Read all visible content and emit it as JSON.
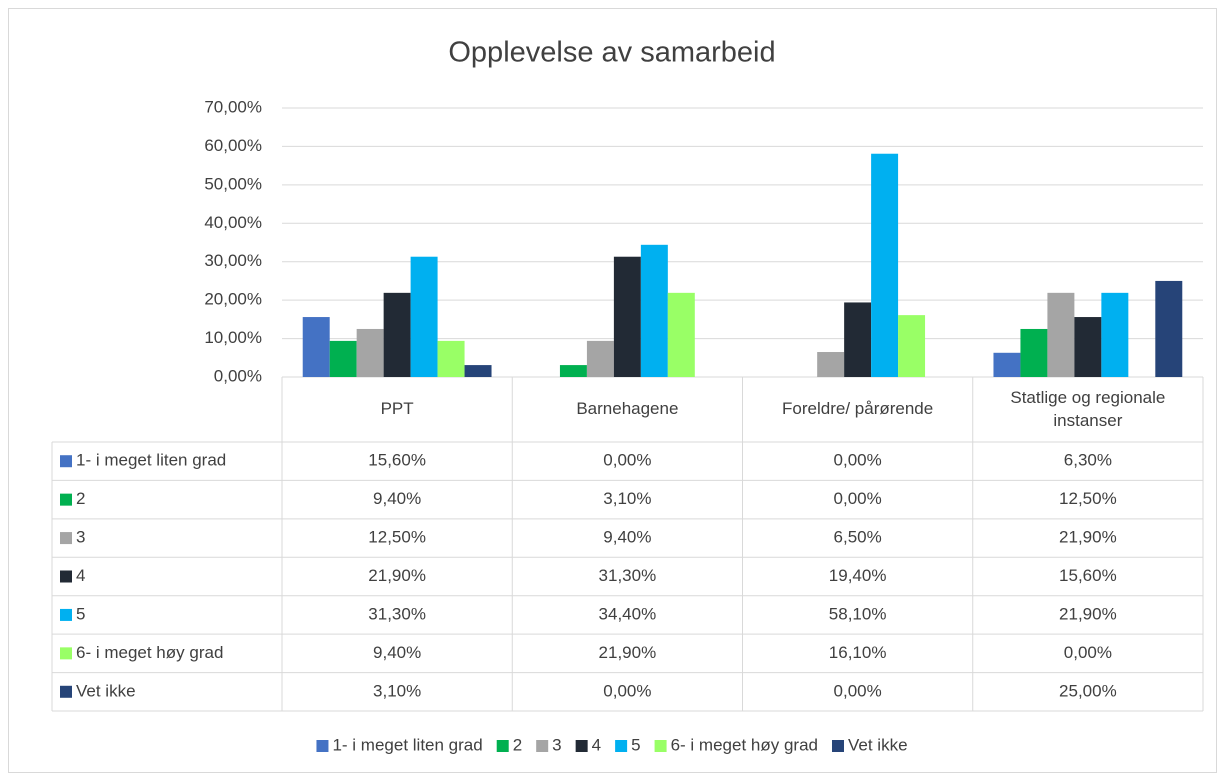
{
  "chart_data": {
    "type": "bar",
    "title": "Opplevelse av samarbeid",
    "categories": [
      "PPT",
      "Barnehagene",
      "Foreldre/ pårørende",
      "Statlige og regionale instanser"
    ],
    "series": [
      {
        "name": "1- i meget liten grad",
        "color": "#4472c4",
        "values": [
          15.6,
          0,
          0,
          6.3
        ],
        "value_labels": [
          "15,60%",
          "0,00%",
          "0,00%",
          "6,30%"
        ]
      },
      {
        "name": "2",
        "color": "#00b050",
        "values": [
          9.4,
          3.1,
          0,
          12.5
        ],
        "value_labels": [
          "9,40%",
          "3,10%",
          "0,00%",
          "12,50%"
        ]
      },
      {
        "name": "3",
        "color": "#a5a5a5",
        "values": [
          12.5,
          9.4,
          6.5,
          21.9
        ],
        "value_labels": [
          "12,50%",
          "9,40%",
          "6,50%",
          "21,90%"
        ]
      },
      {
        "name": "4",
        "color": "#222a35",
        "values": [
          21.9,
          31.3,
          19.4,
          15.6
        ],
        "value_labels": [
          "21,90%",
          "31,30%",
          "19,40%",
          "15,60%"
        ]
      },
      {
        "name": "5",
        "color": "#00b0f0",
        "values": [
          31.3,
          34.4,
          58.1,
          21.9
        ],
        "value_labels": [
          "31,30%",
          "34,40%",
          "58,10%",
          "21,90%"
        ]
      },
      {
        "name": "6- i meget høy grad",
        "color": "#99ff66",
        "values": [
          9.4,
          21.9,
          16.1,
          0
        ],
        "value_labels": [
          "9,40%",
          "21,90%",
          "16,10%",
          "0,00%"
        ]
      },
      {
        "name": "Vet ikke",
        "color": "#264478",
        "values": [
          3.1,
          0,
          0,
          25
        ],
        "value_labels": [
          "3,10%",
          "0,00%",
          "0,00%",
          "25,00%"
        ]
      }
    ],
    "ylim": [
      0,
      70
    ],
    "yticks": [
      {
        "value": 0,
        "label": "0,00%"
      },
      {
        "value": 10,
        "label": "10,00%"
      },
      {
        "value": 20,
        "label": "20,00%"
      },
      {
        "value": 30,
        "label": "30,00%"
      },
      {
        "value": 40,
        "label": "40,00%"
      },
      {
        "value": 50,
        "label": "50,00%"
      },
      {
        "value": 60,
        "label": "60,00%"
      },
      {
        "value": 70,
        "label": "70,00%"
      }
    ],
    "grid": true,
    "legend": "bottom"
  }
}
